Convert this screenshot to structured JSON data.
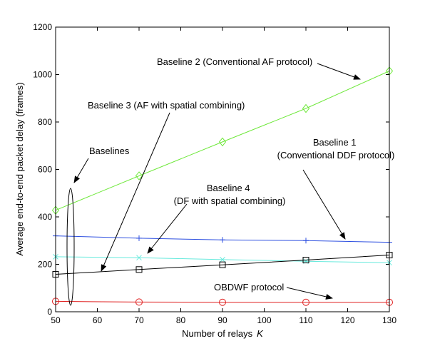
{
  "chart_data": {
    "type": "line",
    "title": "",
    "xlabel_text": "Number of relays",
    "xlabel_var": "K",
    "ylabel": "Average end-to-end packet delay (frames)",
    "xlim": [
      50,
      130
    ],
    "ylim": [
      0,
      1200
    ],
    "xticks": [
      50,
      60,
      70,
      80,
      90,
      100,
      110,
      120,
      130
    ],
    "yticks": [
      0,
      200,
      400,
      600,
      800,
      1000,
      1200
    ],
    "grid": false,
    "legend": "none",
    "series": [
      {
        "name": "Baseline 2 (Conventional AF protocol)",
        "color": "#6ee83a",
        "marker": "diamond",
        "x": [
          50,
          70,
          90,
          110,
          130
        ],
        "y": [
          428,
          573,
          716,
          857,
          1015
        ]
      },
      {
        "name": "Baseline 1 (Conventional DDF protocol)",
        "color": "#2d4fe0",
        "marker": "plus",
        "x": [
          50,
          70,
          90,
          110,
          130
        ],
        "y": [
          320,
          310,
          303,
          300,
          293
        ]
      },
      {
        "name": "Baseline 4 (DF with spatial combining)",
        "color": "#68eadd",
        "marker": "x",
        "x": [
          50,
          70,
          90,
          110,
          130
        ],
        "y": [
          232,
          228,
          220,
          213,
          207
        ]
      },
      {
        "name": "Baseline 3 (AF with spatial combining)",
        "color": "#000000",
        "marker": "square",
        "x": [
          50,
          70,
          90,
          110,
          130
        ],
        "y": [
          158,
          178,
          198,
          218,
          239
        ]
      },
      {
        "name": "OBDWF protocol",
        "color": "#e02020",
        "marker": "circle",
        "x": [
          50,
          70,
          90,
          110,
          130
        ],
        "y": [
          44,
          41,
          40,
          40,
          40
        ]
      }
    ],
    "annotations": [
      {
        "id": "b2",
        "lines": [
          "Baseline 2 (Conventional AF protocol)"
        ]
      },
      {
        "id": "b3",
        "lines": [
          "Baseline 3 (AF with spatial combining)"
        ]
      },
      {
        "id": "b1",
        "lines": [
          "Baseline 1",
          "(Conventional DDF protocol)"
        ]
      },
      {
        "id": "b4",
        "lines": [
          "Baseline 4",
          "(DF with spatial combining)"
        ]
      },
      {
        "id": "baselines",
        "lines": [
          "Baselines"
        ]
      },
      {
        "id": "obdwf",
        "lines": [
          "OBDWF protocol"
        ]
      }
    ]
  }
}
